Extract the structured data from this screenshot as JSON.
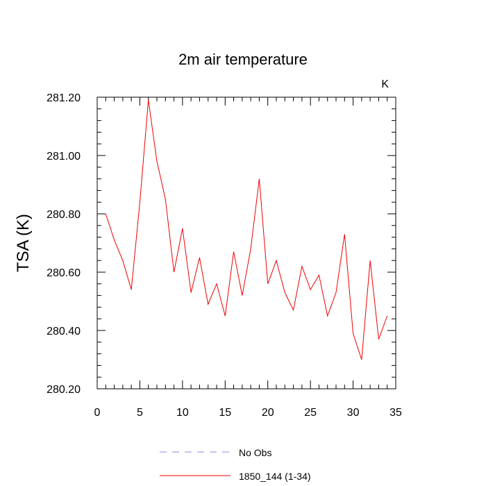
{
  "chart_data": {
    "type": "line",
    "title": "2m air temperature",
    "units": "K",
    "xlabel": "",
    "ylabel": "TSA  (K)",
    "xlim": [
      0,
      35
    ],
    "ylim": [
      280.2,
      281.2
    ],
    "x_ticks": [
      0,
      5,
      10,
      15,
      20,
      25,
      30,
      35
    ],
    "x_tick_labels": [
      "0",
      "5",
      "10",
      "15",
      "20",
      "25",
      "30",
      "35"
    ],
    "y_ticks": [
      280.2,
      280.4,
      280.6,
      280.8,
      281.0,
      281.2
    ],
    "y_tick_labels": [
      "280.20",
      "280.40",
      "280.60",
      "280.80",
      "281.00",
      "281.20"
    ],
    "grid": false,
    "legend_position": "bottom-center",
    "series": [
      {
        "name": "No Obs",
        "color": "#8888ee",
        "dash": "dashed",
        "x": [],
        "values": []
      },
      {
        "name": "1850_144 (1-34)",
        "color": "#ee0000",
        "dash": "solid",
        "x": [
          1,
          2,
          3,
          4,
          5,
          6,
          7,
          8,
          9,
          10,
          11,
          12,
          13,
          14,
          15,
          16,
          17,
          18,
          19,
          20,
          21,
          22,
          23,
          24,
          25,
          26,
          27,
          28,
          29,
          30,
          31,
          32,
          33,
          34
        ],
        "values": [
          280.8,
          280.71,
          280.64,
          280.54,
          280.84,
          281.19,
          280.98,
          280.85,
          280.6,
          280.75,
          280.53,
          280.65,
          280.49,
          280.56,
          280.45,
          280.67,
          280.52,
          280.68,
          280.92,
          280.56,
          280.64,
          280.53,
          280.47,
          280.62,
          280.54,
          280.59,
          280.45,
          280.53,
          280.73,
          280.39,
          280.3,
          280.64,
          280.37,
          280.45
        ]
      }
    ]
  }
}
